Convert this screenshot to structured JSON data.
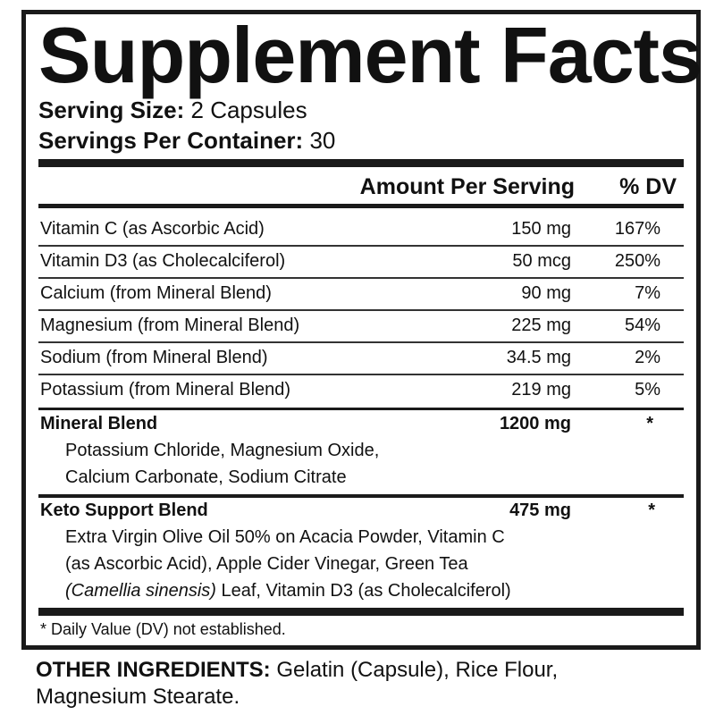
{
  "title": "Supplement Facts",
  "serving_size": {
    "label": "Serving Size:",
    "value": "2 Capsules"
  },
  "servings_per_container": {
    "label": "Servings Per Container:",
    "value": "30"
  },
  "header": {
    "amount": "Amount Per Serving",
    "dv": "% DV"
  },
  "nutrients": [
    {
      "name": "Vitamin C (as Ascorbic Acid)",
      "amount": "150 mg",
      "dv": "167%"
    },
    {
      "name": "Vitamin D3 (as Cholecalciferol)",
      "amount": "50 mcg",
      "dv": "250%"
    },
    {
      "name": "Calcium (from Mineral Blend)",
      "amount": "90 mg",
      "dv": "7%"
    },
    {
      "name": "Magnesium (from Mineral Blend)",
      "amount": "225 mg",
      "dv": "54%"
    },
    {
      "name": "Sodium (from Mineral Blend)",
      "amount": "34.5 mg",
      "dv": "2%"
    },
    {
      "name": "Potassium (from Mineral Blend)",
      "amount": "219 mg",
      "dv": "5%"
    }
  ],
  "mineral_blend": {
    "name": "Mineral Blend",
    "amount": "1200 mg",
    "dv": "*",
    "lines": [
      "Potassium Chloride, Magnesium Oxide,",
      "Calcium Carbonate, Sodium Citrate"
    ]
  },
  "keto_blend": {
    "name": "Keto Support Blend",
    "amount": "475 mg",
    "dv": "*",
    "line1": "Extra Virgin Olive Oil 50% on Acacia Powder, Vitamin C",
    "line2": "(as Ascorbic Acid), Apple Cider Vinegar, Green Tea",
    "line3_italic": "(Camellia sinensis)",
    "line3_rest": " Leaf, Vitamin D3 (as Cholecalciferol)"
  },
  "footnote": "* Daily Value (DV) not established.",
  "other_ingredients": {
    "label": "OTHER INGREDIENTS:",
    "line1": " Gelatin (Capsule), Rice Flour,",
    "line2": "Magnesium Stearate."
  }
}
